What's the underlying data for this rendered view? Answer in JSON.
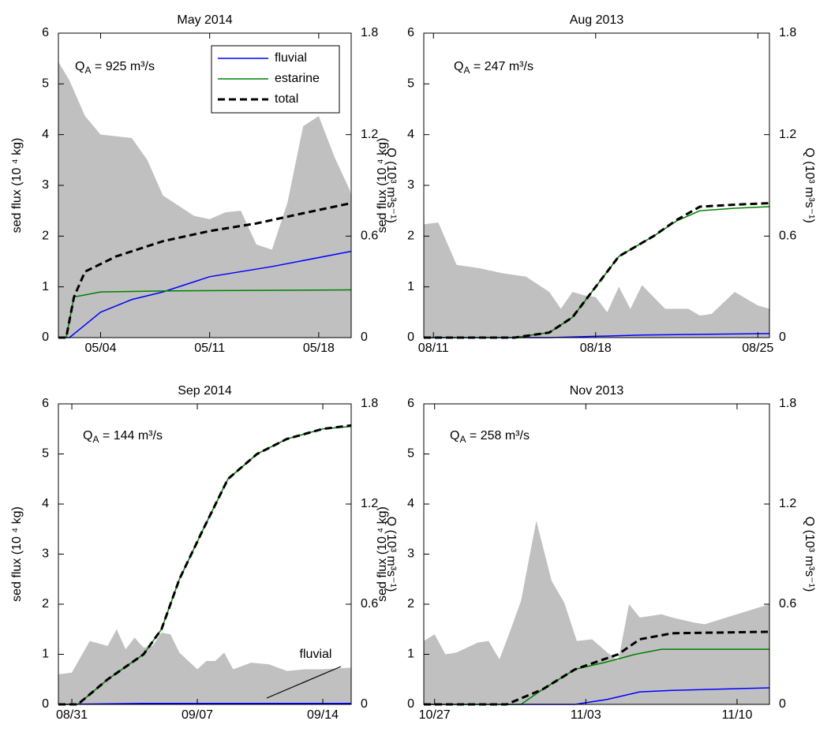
{
  "chart_data": [
    {
      "type": "line",
      "title": "May 2014",
      "annotation": {
        "symbol": "Q",
        "subscript": "A",
        "text": " = 925 m³/s"
      },
      "ylabel": "sed flux (10 ⁴ kg)",
      "y2label": "Q (10³ m³s⁻¹)",
      "xlim": [
        "2014-05-01T07:00",
        "2014-05-20T02:00"
      ],
      "xticks": [
        {
          "value": "2014-05-04T00:00",
          "label": "05/04"
        },
        {
          "value": "2014-05-11T00:00",
          "label": "05/11"
        },
        {
          "value": "2014-05-18T00:00",
          "label": "05/18"
        }
      ],
      "ylim": [
        0,
        6
      ],
      "yticks": [
        0,
        1,
        2,
        3,
        4,
        5,
        6
      ],
      "y2lim": [
        0,
        1.8
      ],
      "y2ticks": [
        0,
        0.6,
        1.2,
        1.8
      ],
      "legend": "upper right",
      "area": {
        "color": "#c0c0c0",
        "axis": "y2",
        "x": [
          "2014-05-01T07:00",
          "2014-05-02T00:00",
          "2014-05-03T00:00",
          "2014-05-04T00:00",
          "2014-05-05T00:00",
          "2014-05-06T00:00",
          "2014-05-07T00:00",
          "2014-05-08T00:00",
          "2014-05-09T00:00",
          "2014-05-10T00:00",
          "2014-05-11T00:00",
          "2014-05-12T00:00",
          "2014-05-13T00:00",
          "2014-05-14T00:00",
          "2014-05-15T00:00",
          "2014-05-16T00:00",
          "2014-05-17T00:00",
          "2014-05-18T00:00",
          "2014-05-19T00:00",
          "2014-05-20T00:00",
          "2014-05-20T02:00"
        ],
        "values": [
          1.63,
          1.52,
          1.31,
          1.2,
          1.19,
          1.18,
          1.05,
          0.84,
          0.78,
          0.72,
          0.7,
          0.74,
          0.75,
          0.55,
          0.52,
          0.8,
          1.25,
          1.31,
          1.07,
          0.87,
          0.83
        ]
      },
      "series": [
        {
          "name": "fluvial",
          "color": "#0000ff",
          "x": [
            "2014-05-01T07:00",
            "2014-05-02T00:00",
            "2014-05-03T00:00",
            "2014-05-04T00:00",
            "2014-05-06T00:00",
            "2014-05-08T00:00",
            "2014-05-11T00:00",
            "2014-05-15T00:00",
            "2014-05-20T02:00"
          ],
          "values": [
            0,
            0,
            0.25,
            0.5,
            0.75,
            0.9,
            1.2,
            1.4,
            1.7
          ]
        },
        {
          "name": "estarine",
          "color": "#008000",
          "x": [
            "2014-05-01T07:00",
            "2014-05-01T19:00",
            "2014-05-02T07:00",
            "2014-05-04T00:00",
            "2014-05-08T00:00",
            "2014-05-20T02:00"
          ],
          "values": [
            0,
            0,
            0.8,
            0.9,
            0.92,
            0.94
          ]
        },
        {
          "name": "total",
          "color": "#000000",
          "dash": true,
          "x": [
            "2014-05-01T07:00",
            "2014-05-01T19:00",
            "2014-05-02T07:00",
            "2014-05-03T00:00",
            "2014-05-05T00:00",
            "2014-05-08T00:00",
            "2014-05-11T00:00",
            "2014-05-14T00:00",
            "2014-05-17T00:00",
            "2014-05-20T02:00"
          ],
          "values": [
            0,
            0,
            0.8,
            1.3,
            1.6,
            1.9,
            2.1,
            2.25,
            2.45,
            2.65
          ]
        }
      ]
    },
    {
      "type": "line",
      "title": "Aug 2013",
      "annotation": {
        "symbol": "Q",
        "subscript": "A",
        "text": " = 247 m³/s"
      },
      "ylabel": "sed flux (10 ⁴ kg)",
      "y2label": "Q (10³ m³s⁻¹)",
      "xlim": [
        "2013-08-10T14:00",
        "2013-08-25T12:00"
      ],
      "xticks": [
        {
          "value": "2013-08-11T00:00",
          "label": "08/11"
        },
        {
          "value": "2013-08-18T00:00",
          "label": "08/18"
        },
        {
          "value": "2013-08-25T00:00",
          "label": "08/25"
        }
      ],
      "ylim": [
        0,
        6
      ],
      "yticks": [
        0,
        1,
        2,
        3,
        4,
        5,
        6
      ],
      "y2lim": [
        0,
        1.8
      ],
      "y2ticks": [
        0,
        0.6,
        1.2,
        1.8
      ],
      "area": {
        "color": "#c0c0c0",
        "axis": "y2",
        "x": [
          "2013-08-10T14:00",
          "2013-08-11T05:00",
          "2013-08-12T00:00",
          "2013-08-13T00:00",
          "2013-08-14T00:00",
          "2013-08-15T00:00",
          "2013-08-16T00:00",
          "2013-08-16T12:00",
          "2013-08-17T00:00",
          "2013-08-17T12:00",
          "2013-08-18T00:00",
          "2013-08-18T12:00",
          "2013-08-19T00:00",
          "2013-08-19T12:00",
          "2013-08-20T00:00",
          "2013-08-21T00:00",
          "2013-08-22T00:00",
          "2013-08-22T12:00",
          "2013-08-23T00:00",
          "2013-08-24T00:00",
          "2013-08-25T00:00",
          "2013-08-25T12:00"
        ],
        "values": [
          0.67,
          0.68,
          0.43,
          0.41,
          0.38,
          0.36,
          0.27,
          0.17,
          0.27,
          0.25,
          0.24,
          0.15,
          0.3,
          0.17,
          0.31,
          0.17,
          0.17,
          0.13,
          0.14,
          0.27,
          0.19,
          0.17
        ]
      },
      "series": [
        {
          "color": "#0000ff",
          "x": [
            "2013-08-10T14:00",
            "2013-08-16T00:00",
            "2013-08-20T00:00",
            "2013-08-25T12:00"
          ],
          "values": [
            0,
            0,
            0.05,
            0.08
          ]
        },
        {
          "color": "#008000",
          "x": [
            "2013-08-10T14:00",
            "2013-08-14T12:00",
            "2013-08-16T00:00",
            "2013-08-17T00:00",
            "2013-08-18T00:00",
            "2013-08-19T00:00",
            "2013-08-20T12:00",
            "2013-08-21T12:00",
            "2013-08-22T12:00",
            "2013-08-24T00:00",
            "2013-08-25T12:00"
          ],
          "values": [
            0,
            0,
            0.1,
            0.4,
            1.0,
            1.6,
            2.0,
            2.3,
            2.5,
            2.55,
            2.58
          ]
        },
        {
          "color": "#000000",
          "dash": true,
          "x": [
            "2013-08-10T14:00",
            "2013-08-14T12:00",
            "2013-08-16T00:00",
            "2013-08-17T00:00",
            "2013-08-18T00:00",
            "2013-08-19T00:00",
            "2013-08-20T12:00",
            "2013-08-21T12:00",
            "2013-08-22T12:00",
            "2013-08-24T00:00",
            "2013-08-25T12:00"
          ],
          "values": [
            0,
            0,
            0.1,
            0.4,
            1.0,
            1.6,
            2.0,
            2.32,
            2.58,
            2.62,
            2.65
          ]
        }
      ]
    },
    {
      "type": "line",
      "title": "Sep 2014",
      "annotation": {
        "symbol": "Q",
        "subscript": "A",
        "text": " = 144 m³/s"
      },
      "note": "fluvial",
      "ylabel": "sed flux (10 ⁴ kg)",
      "y2label": "Q (10³ m³s⁻¹)",
      "xlim": [
        "2014-08-30T06:00",
        "2014-09-15T14:00"
      ],
      "xticks": [
        {
          "value": "2014-08-31T00:00",
          "label": "08/31"
        },
        {
          "value": "2014-09-07T00:00",
          "label": "09/07"
        },
        {
          "value": "2014-09-14T00:00",
          "label": "09/14"
        }
      ],
      "ylim": [
        0,
        6
      ],
      "yticks": [
        0,
        1,
        2,
        3,
        4,
        5,
        6
      ],
      "y2lim": [
        0,
        1.8
      ],
      "y2ticks": [
        0,
        0.6,
        1.2,
        1.8
      ],
      "area": {
        "color": "#c0c0c0",
        "axis": "y2",
        "x": [
          "2014-08-30T06:00",
          "2014-08-31T00:00",
          "2014-09-01T00:00",
          "2014-09-02T00:00",
          "2014-09-02T12:00",
          "2014-09-03T00:00",
          "2014-09-03T12:00",
          "2014-09-04T00:00",
          "2014-09-04T12:00",
          "2014-09-05T00:00",
          "2014-09-05T12:00",
          "2014-09-06T00:00",
          "2014-09-07T00:00",
          "2014-09-07T12:00",
          "2014-09-08T00:00",
          "2014-09-08T12:00",
          "2014-09-09T00:00",
          "2014-09-10T00:00",
          "2014-09-11T00:00",
          "2014-09-12T00:00",
          "2014-09-13T00:00",
          "2014-09-14T00:00",
          "2014-09-15T14:00"
        ],
        "values": [
          0.18,
          0.19,
          0.38,
          0.35,
          0.45,
          0.33,
          0.4,
          0.34,
          0.35,
          0.43,
          0.42,
          0.31,
          0.21,
          0.26,
          0.26,
          0.31,
          0.21,
          0.25,
          0.24,
          0.2,
          0.21,
          0.21,
          0.22
        ]
      },
      "series": [
        {
          "color": "#0000ff",
          "x": [
            "2014-08-30T06:00",
            "2014-09-04T00:00",
            "2014-09-15T14:00"
          ],
          "values": [
            0,
            0.02,
            0.02
          ]
        },
        {
          "color": "#008000",
          "x": [
            "2014-08-30T06:00",
            "2014-08-31T08:00",
            "2014-09-02T00:00",
            "2014-09-04T00:00",
            "2014-09-05T00:00",
            "2014-09-06T00:00",
            "2014-09-07T08:00",
            "2014-09-08T17:00",
            "2014-09-10T08:00",
            "2014-09-12T00:00",
            "2014-09-14T00:00",
            "2014-09-15T14:00"
          ],
          "values": [
            0,
            0,
            0.5,
            1.0,
            1.5,
            2.5,
            3.5,
            4.5,
            5.0,
            5.3,
            5.5,
            5.55
          ]
        },
        {
          "color": "#000000",
          "dash": true,
          "x": [
            "2014-08-30T06:00",
            "2014-08-31T08:00",
            "2014-09-02T00:00",
            "2014-09-04T00:00",
            "2014-09-05T00:00",
            "2014-09-06T00:00",
            "2014-09-07T08:00",
            "2014-09-08T17:00",
            "2014-09-10T08:00",
            "2014-09-12T00:00",
            "2014-09-14T00:00",
            "2014-09-15T14:00"
          ],
          "values": [
            0,
            0,
            0.5,
            1.0,
            1.5,
            2.5,
            3.5,
            4.5,
            5.0,
            5.3,
            5.5,
            5.57
          ]
        }
      ]
    },
    {
      "type": "line",
      "title": "Nov 2013",
      "annotation": {
        "symbol": "Q",
        "subscript": "A",
        "text": " = 258 m³/s"
      },
      "ylabel": "sed flux (10 ⁴ kg)",
      "y2label": "Q (10³ m³s⁻¹)",
      "xlim": [
        "2013-10-26T12:00",
        "2013-11-11T12:00"
      ],
      "xticks": [
        {
          "value": "2013-10-27T00:00",
          "label": "10/27"
        },
        {
          "value": "2013-11-03T00:00",
          "label": "11/03"
        },
        {
          "value": "2013-11-10T00:00",
          "label": "11/10"
        }
      ],
      "ylim": [
        0,
        6
      ],
      "yticks": [
        0,
        1,
        2,
        3,
        4,
        5,
        6
      ],
      "y2lim": [
        0,
        1.8
      ],
      "y2ticks": [
        0,
        0.6,
        1.2,
        1.8
      ],
      "area": {
        "color": "#c0c0c0",
        "axis": "y2",
        "x": [
          "2013-10-26T12:00",
          "2013-10-27T00:00",
          "2013-10-27T12:00",
          "2013-10-28T00:00",
          "2013-10-29T00:00",
          "2013-10-29T12:00",
          "2013-10-30T00:00",
          "2013-10-30T12:00",
          "2013-10-31T00:00",
          "2013-10-31T17:00",
          "2013-11-01T10:00",
          "2013-11-02T00:00",
          "2013-11-02T14:00",
          "2013-11-03T07:00",
          "2013-11-04T00:00",
          "2013-11-04T12:00",
          "2013-11-05T00:00",
          "2013-11-05T12:00",
          "2013-11-06T00:00",
          "2013-11-06T12:00",
          "2013-11-07T00:00",
          "2013-11-08T00:00",
          "2013-11-08T12:00",
          "2013-11-11T12:00"
        ],
        "values": [
          0.38,
          0.42,
          0.3,
          0.31,
          0.37,
          0.38,
          0.27,
          0.44,
          0.62,
          1.1,
          0.74,
          0.61,
          0.38,
          0.39,
          0.31,
          0.26,
          0.6,
          0.52,
          0.53,
          0.54,
          0.52,
          0.49,
          0.48,
          0.6
        ]
      },
      "series": [
        {
          "color": "#0000ff",
          "x": [
            "2013-10-26T12:00",
            "2013-11-02T12:00",
            "2013-11-04T00:00",
            "2013-11-05T12:00",
            "2013-11-07T00:00",
            "2013-11-11T12:00"
          ],
          "values": [
            0,
            0,
            0.1,
            0.25,
            0.28,
            0.33
          ]
        },
        {
          "color": "#008000",
          "x": [
            "2013-10-26T12:00",
            "2013-10-31T00:00",
            "2013-11-01T00:00",
            "2013-11-02T12:00",
            "2013-11-04T00:00",
            "2013-11-05T07:00",
            "2013-11-06T12:00",
            "2013-11-11T12:00"
          ],
          "values": [
            0,
            0,
            0.3,
            0.7,
            0.85,
            1.0,
            1.1,
            1.1
          ]
        },
        {
          "color": "#000000",
          "dash": true,
          "x": [
            "2013-10-26T12:00",
            "2013-10-30T08:00",
            "2013-11-01T00:00",
            "2013-11-02T12:00",
            "2013-11-04T12:00",
            "2013-11-05T12:00",
            "2013-11-07T00:00",
            "2013-11-11T12:00"
          ],
          "values": [
            0,
            0,
            0.3,
            0.7,
            1.0,
            1.3,
            1.42,
            1.45
          ]
        }
      ]
    }
  ]
}
